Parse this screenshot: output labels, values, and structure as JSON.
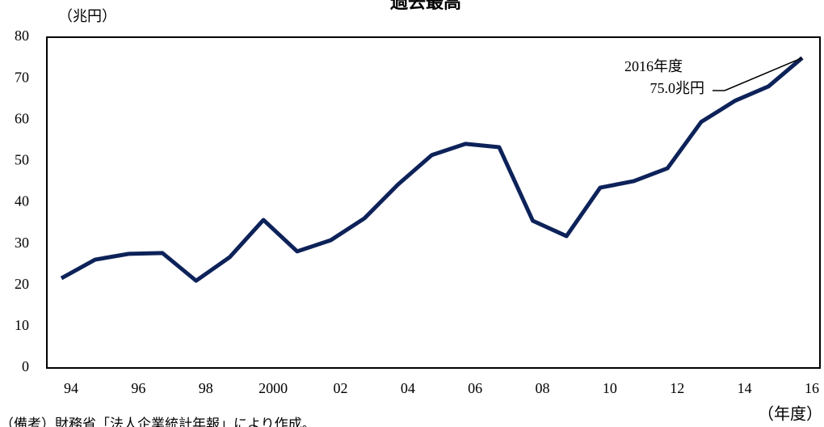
{
  "chart_data": {
    "type": "line",
    "title": "過去最高",
    "ylabel": "（兆円）",
    "xlabel": "（年度）",
    "categories": [
      "94",
      null,
      "96",
      null,
      "98",
      null,
      "2000",
      null,
      "02",
      null,
      "04",
      null,
      "06",
      null,
      "08",
      null,
      "10",
      null,
      "12",
      null,
      "14",
      null,
      "16"
    ],
    "values": [
      21.7,
      26.2,
      27.6,
      27.8,
      21.1,
      26.8,
      35.8,
      28.2,
      30.9,
      36.2,
      44.4,
      51.5,
      54.2,
      53.4,
      35.6,
      31.9,
      43.6,
      45.2,
      48.3,
      59.5,
      64.6,
      68.1,
      75.0
    ],
    "color": "#0d2259",
    "ylim": [
      0,
      80
    ],
    "yticks": [
      0,
      10,
      20,
      30,
      40,
      50,
      60,
      70,
      80
    ],
    "grid": false,
    "annotations": [
      "2016年度",
      "75.0兆円"
    ],
    "note": "（備考）財務省「法人企業統計年報」により作成。"
  }
}
